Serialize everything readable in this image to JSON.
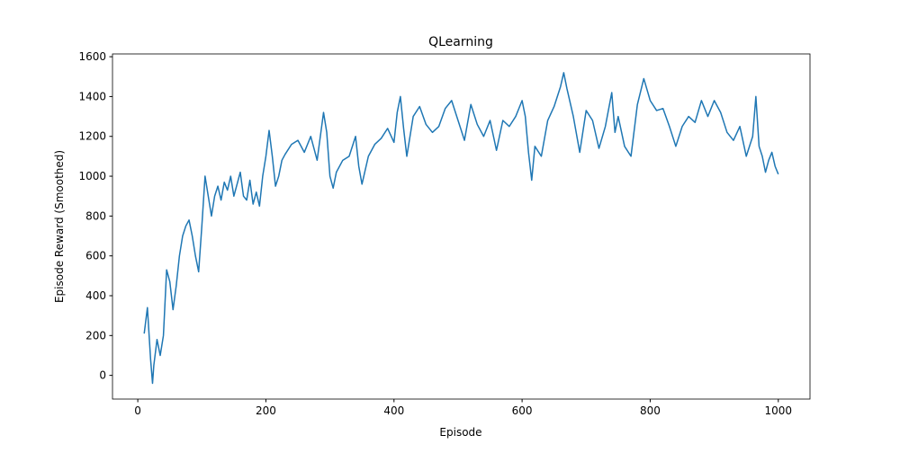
{
  "chart_data": {
    "type": "line",
    "title": "QLearning",
    "x_label": "Episode",
    "y_label": "Episode Reward (Smoothed)",
    "x": [
      10,
      15,
      20,
      23,
      25,
      30,
      35,
      40,
      45,
      50,
      55,
      60,
      65,
      70,
      75,
      80,
      85,
      90,
      95,
      100,
      105,
      110,
      115,
      120,
      125,
      130,
      135,
      140,
      145,
      150,
      155,
      160,
      165,
      170,
      175,
      180,
      185,
      190,
      195,
      200,
      205,
      210,
      215,
      220,
      225,
      230,
      240,
      250,
      260,
      270,
      280,
      290,
      295,
      300,
      305,
      310,
      320,
      330,
      340,
      345,
      350,
      360,
      370,
      380,
      390,
      400,
      405,
      410,
      415,
      420,
      430,
      440,
      450,
      460,
      470,
      480,
      490,
      500,
      510,
      520,
      530,
      540,
      550,
      560,
      570,
      580,
      590,
      600,
      605,
      610,
      615,
      620,
      630,
      640,
      650,
      660,
      665,
      670,
      680,
      690,
      700,
      710,
      720,
      730,
      740,
      745,
      750,
      760,
      770,
      780,
      790,
      800,
      810,
      820,
      830,
      840,
      850,
      860,
      870,
      880,
      890,
      900,
      910,
      920,
      930,
      940,
      950,
      960,
      965,
      970,
      975,
      980,
      985,
      990,
      995,
      1000
    ],
    "series": [
      {
        "name": "QLearning",
        "color": "#1f77b4",
        "values": [
          210,
          340,
          80,
          -40,
          50,
          180,
          100,
          200,
          530,
          470,
          330,
          450,
          600,
          700,
          750,
          780,
          700,
          600,
          520,
          750,
          1000,
          900,
          800,
          900,
          950,
          880,
          970,
          930,
          1000,
          900,
          960,
          1020,
          900,
          880,
          980,
          860,
          920,
          850,
          1000,
          1100,
          1230,
          1100,
          950,
          1000,
          1080,
          1110,
          1160,
          1180,
          1120,
          1200,
          1080,
          1320,
          1220,
          1000,
          940,
          1020,
          1080,
          1100,
          1200,
          1050,
          960,
          1100,
          1160,
          1190,
          1240,
          1170,
          1320,
          1400,
          1240,
          1100,
          1300,
          1350,
          1260,
          1220,
          1250,
          1340,
          1380,
          1280,
          1180,
          1360,
          1260,
          1200,
          1280,
          1130,
          1280,
          1250,
          1300,
          1380,
          1300,
          1120,
          980,
          1150,
          1100,
          1280,
          1350,
          1450,
          1520,
          1440,
          1300,
          1120,
          1330,
          1280,
          1140,
          1250,
          1420,
          1220,
          1300,
          1150,
          1100,
          1360,
          1490,
          1380,
          1330,
          1340,
          1250,
          1150,
          1250,
          1300,
          1270,
          1380,
          1300,
          1380,
          1320,
          1220,
          1180,
          1250,
          1100,
          1200,
          1400,
          1150,
          1100,
          1020,
          1080,
          1120,
          1050,
          1010
        ]
      }
    ],
    "xlim": [
      -39.5,
      1049.5
    ],
    "ylim": [
      -119,
      1614
    ],
    "xticks": [
      0,
      200,
      400,
      600,
      800,
      1000
    ],
    "yticks": [
      0,
      200,
      400,
      600,
      800,
      1000,
      1200,
      1400,
      1600
    ]
  }
}
